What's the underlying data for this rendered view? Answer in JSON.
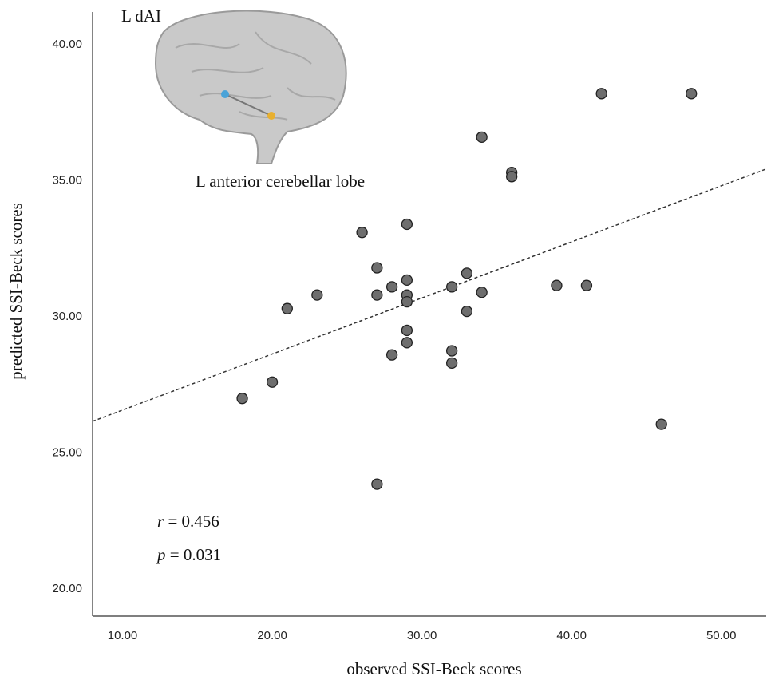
{
  "chart_data": {
    "type": "scatter",
    "x_label": "observed SSI-Beck scores",
    "y_label": "predicted SSI-Beck scores",
    "x": [
      18,
      20,
      21,
      23,
      26,
      27,
      27,
      27,
      28,
      28,
      29,
      29,
      29,
      29,
      29,
      29,
      32,
      32,
      32,
      33,
      33,
      34,
      34,
      36,
      36,
      39,
      41,
      42,
      46,
      48
    ],
    "series": [
      {
        "color": "#6e6e6e",
        "values": [
          27.0,
          27.6,
          30.3,
          30.8,
          33.1,
          31.8,
          30.8,
          23.85,
          31.1,
          28.6,
          33.4,
          31.35,
          30.8,
          30.55,
          29.5,
          29.05,
          31.1,
          28.75,
          28.3,
          31.6,
          30.2,
          36.6,
          30.9,
          35.3,
          35.15,
          31.15,
          31.15,
          38.2,
          26.05,
          38.2
        ]
      }
    ],
    "fit_line": {
      "x": [
        8,
        53
      ],
      "y": [
        26.16,
        35.43
      ]
    },
    "xlim": [
      8,
      53
    ],
    "ylim": [
      19,
      41.2
    ],
    "xticks": [
      {
        "value": 10,
        "label": "10.00"
      },
      {
        "value": 20,
        "label": "20.00"
      },
      {
        "value": 30,
        "label": "30.00"
      },
      {
        "value": 40,
        "label": "40.00"
      },
      {
        "value": 50,
        "label": "50.00"
      }
    ],
    "yticks": [
      {
        "value": 20,
        "label": "20.00"
      },
      {
        "value": 25,
        "label": "25.00"
      },
      {
        "value": 30,
        "label": "30.00"
      },
      {
        "value": 35,
        "label": "35.00"
      },
      {
        "value": 40,
        "label": "40.00"
      }
    ],
    "annotations": {
      "region_1": "L dAI",
      "region_2": "L anterior cerebellar lobe",
      "r": {
        "symbol": "r",
        "text": "= 0.456"
      },
      "p": {
        "symbol": "p",
        "text": "= 0.031"
      }
    }
  }
}
